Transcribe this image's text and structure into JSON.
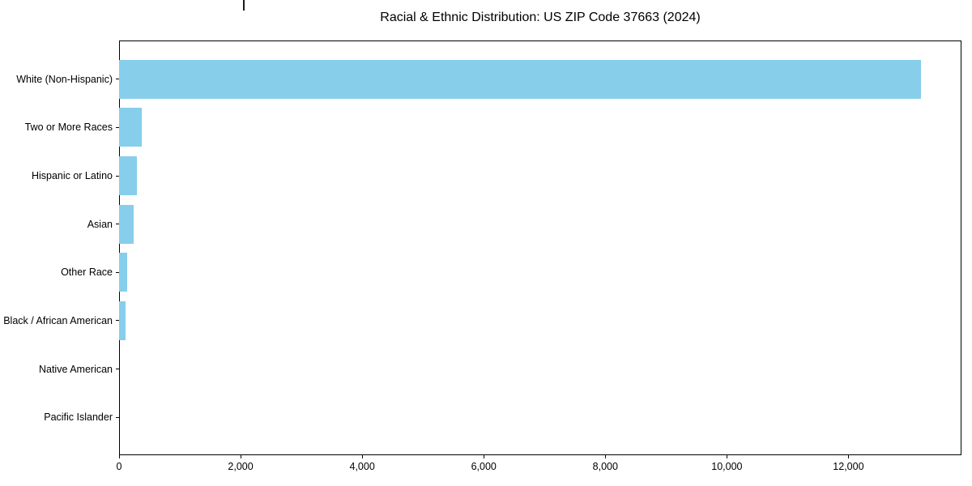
{
  "chart_data": {
    "type": "bar",
    "orientation": "horizontal",
    "title": "Racial & Ethnic Distribution: US ZIP Code 37663 (2024)",
    "categories": [
      "White (Non-Hispanic)",
      "Two or More Races",
      "Hispanic or Latino",
      "Asian",
      "Other Race",
      "Black / African American",
      "Native American",
      "Pacific Islander"
    ],
    "values": [
      13200,
      375,
      290,
      235,
      130,
      100,
      0,
      0
    ],
    "bar_color": "#87CEEB",
    "axis_color": "#000000",
    "background_color": "#ffffff",
    "xlabel": "",
    "ylabel": "",
    "xlim": [
      0,
      13860
    ],
    "x_ticks": {
      "values": [
        0,
        2000,
        4000,
        6000,
        8000,
        10000,
        12000
      ],
      "labels": [
        "0",
        "2,000",
        "4,000",
        "6,000",
        "8,000",
        "10,000",
        "12,000"
      ]
    },
    "grid": false,
    "legend": "none",
    "bar_height_fraction": 0.8
  }
}
